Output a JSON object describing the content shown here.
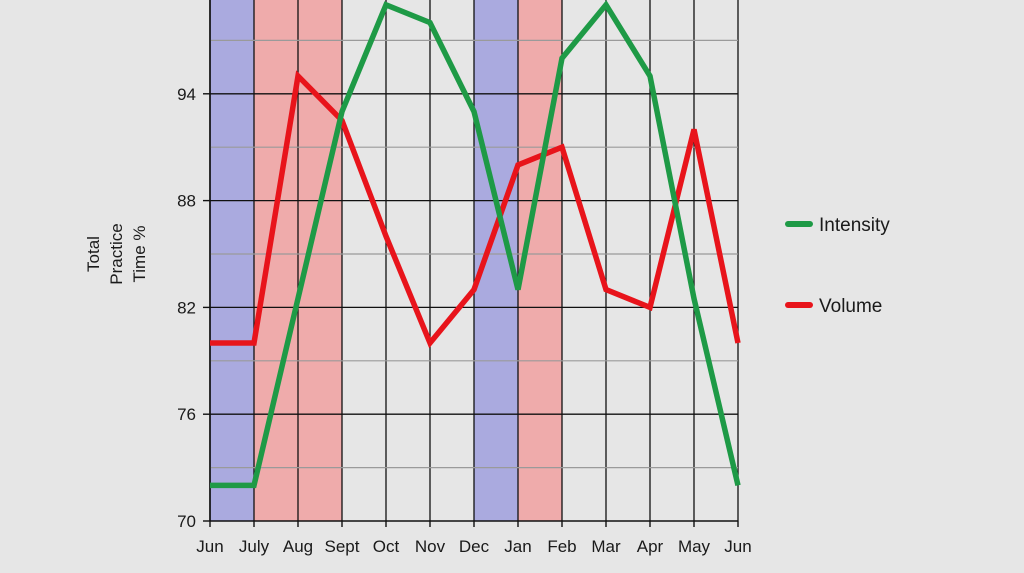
{
  "chart_data": {
    "type": "line",
    "title": "",
    "xlabel": "",
    "ylabel": [
      "Total",
      "Practice",
      "Time %"
    ],
    "ylim": [
      70,
      100
    ],
    "yticks": [
      70,
      76,
      82,
      88,
      94
    ],
    "grid": true,
    "legend_position": "right",
    "categories": [
      "Jun",
      "July",
      "Aug",
      "Sept",
      "Oct",
      "Nov",
      "Dec",
      "Jan",
      "Feb",
      "Mar",
      "Apr",
      "May",
      "Jun"
    ],
    "series": [
      {
        "name": "Intensity",
        "color": "#1e9a46",
        "values": [
          72,
          72,
          82.5,
          93,
          99,
          98,
          93,
          83,
          96,
          99,
          95,
          82.5,
          72
        ]
      },
      {
        "name": "Volume",
        "color": "#e8141b",
        "values": [
          80,
          80,
          95,
          92.5,
          86,
          80,
          83,
          90,
          91,
          83,
          82,
          92,
          80
        ]
      }
    ],
    "bands": [
      {
        "from": "Jun",
        "to": "July",
        "color": "#aaaadf"
      },
      {
        "from": "July",
        "to": "Sept",
        "color": "#efabab"
      },
      {
        "from": "Dec",
        "to": "Jan",
        "color": "#aaaadf"
      },
      {
        "from": "Jan",
        "to": "Feb",
        "color": "#efabab"
      }
    ]
  }
}
